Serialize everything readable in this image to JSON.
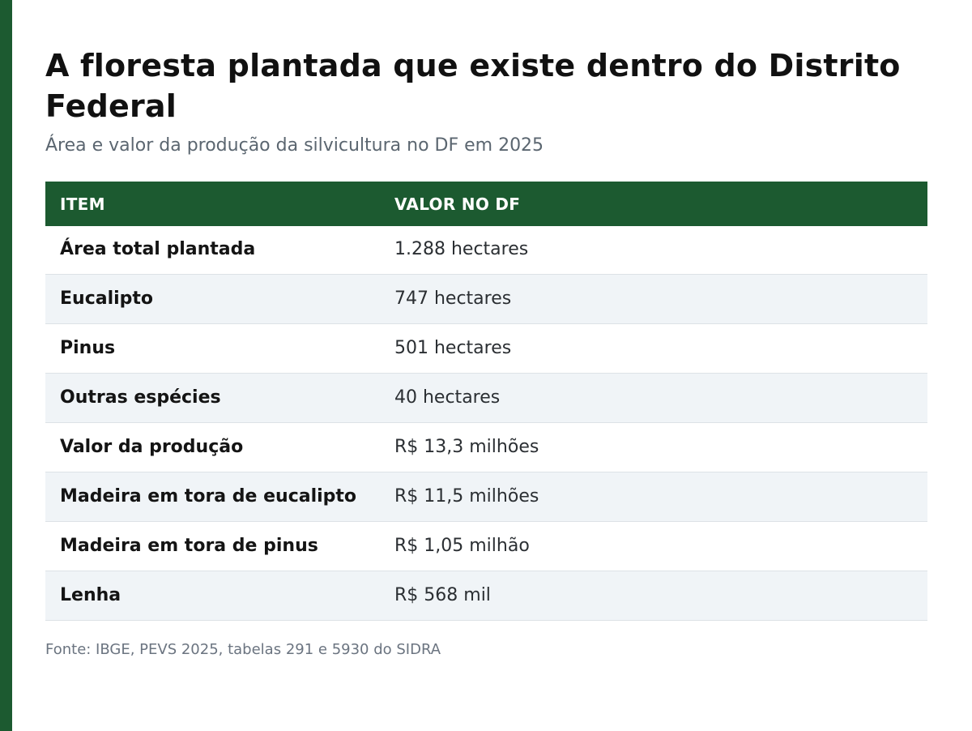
{
  "header": {
    "title": "A floresta plantada que existe dentro do Distrito Federal",
    "subtitle": "Área e valor da produção da silvicultura no DF em 2025"
  },
  "table": {
    "columns": [
      "ITEM",
      "VALOR NO DF"
    ],
    "rows": [
      {
        "item": "Área total plantada",
        "value": "1.288 hectares"
      },
      {
        "item": "Eucalipto",
        "value": "747 hectares"
      },
      {
        "item": "Pinus",
        "value": "501 hectares"
      },
      {
        "item": "Outras espécies",
        "value": "40 hectares"
      },
      {
        "item": "Valor da produção",
        "value": "R$ 13,3 milhões"
      },
      {
        "item": "Madeira em tora de eucalipto",
        "value": "R$ 11,5 milhões"
      },
      {
        "item": "Madeira em tora de pinus",
        "value": "R$ 1,05 milhão"
      },
      {
        "item": "Lenha",
        "value": "R$ 568 mil"
      }
    ]
  },
  "footer": {
    "source": "Fonte: IBGE, PEVS 2025, tabelas 291 e 5930 do SIDRA"
  },
  "colors": {
    "accent": "#1c5a30",
    "row_alt": "#f0f4f7"
  }
}
